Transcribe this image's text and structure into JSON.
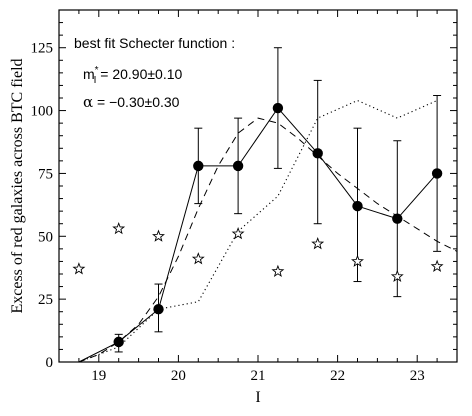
{
  "chart_data": {
    "type": "scatter",
    "title": "",
    "xlabel": "I",
    "ylabel": "Excess of red galaxies across BTC field",
    "xlim": [
      18.5,
      23.5
    ],
    "ylim": [
      0,
      140
    ],
    "xticks": [
      19,
      20,
      21,
      22,
      23
    ],
    "xtick_labels": [
      "19",
      "20",
      "21",
      "22",
      "23"
    ],
    "yticks": [
      0,
      25,
      50,
      75,
      100,
      125
    ],
    "ytick_labels": [
      "0",
      "25",
      "50",
      "75",
      "100",
      "125"
    ],
    "grid": false,
    "annotations": {
      "header": "best fit Schecter function :",
      "mstar_symbol": "m",
      "mstar_sup": "*",
      "mstar_sub": "I",
      "mstar_value": " = 20.90±0.10",
      "alpha_symbol": "α",
      "alpha_value": " = −0.30±0.30"
    },
    "series": [
      {
        "style": "filled-circle-solid-line-errorbars",
        "x": [
          18.75,
          19.25,
          19.75,
          20.25,
          20.75,
          21.25,
          21.75,
          22.25,
          22.75,
          23.25
        ],
        "y": [
          0,
          8,
          21,
          78,
          78,
          101,
          83,
          62,
          57,
          75
        ],
        "yerr_low": [
          0,
          4,
          9,
          15,
          19,
          24,
          28,
          30,
          31,
          31
        ],
        "yerr_high": [
          0,
          3,
          10,
          15,
          19,
          24,
          29,
          31,
          31,
          31
        ],
        "markers": [
          false,
          true,
          true,
          true,
          true,
          true,
          true,
          true,
          true,
          true
        ]
      },
      {
        "style": "dashed",
        "x": [
          18.75,
          19.0,
          19.25,
          19.5,
          19.75,
          20.0,
          20.25,
          20.5,
          20.75,
          21.0,
          21.25,
          21.5,
          21.75,
          22.0,
          22.25,
          22.5,
          22.75,
          23.0,
          23.25,
          23.5
        ],
        "y": [
          0,
          3,
          8,
          15,
          26,
          42,
          61,
          78,
          91,
          97,
          95,
          89,
          82,
          75,
          69,
          63,
          58,
          53,
          48,
          44
        ]
      },
      {
        "style": "dotted",
        "x": [
          18.75,
          19.25,
          19.75,
          20.25,
          20.75,
          21.25,
          21.75,
          22.25,
          22.75,
          23.25
        ],
        "y": [
          0,
          6,
          21,
          24,
          52,
          66,
          97,
          104,
          97,
          104
        ]
      },
      {
        "style": "open-star",
        "x": [
          18.75,
          19.25,
          19.75,
          20.25,
          20.75,
          21.25,
          21.75,
          22.25,
          22.75,
          23.25
        ],
        "y": [
          37,
          53,
          50,
          41,
          51,
          36,
          47,
          40,
          34,
          38
        ]
      }
    ]
  }
}
